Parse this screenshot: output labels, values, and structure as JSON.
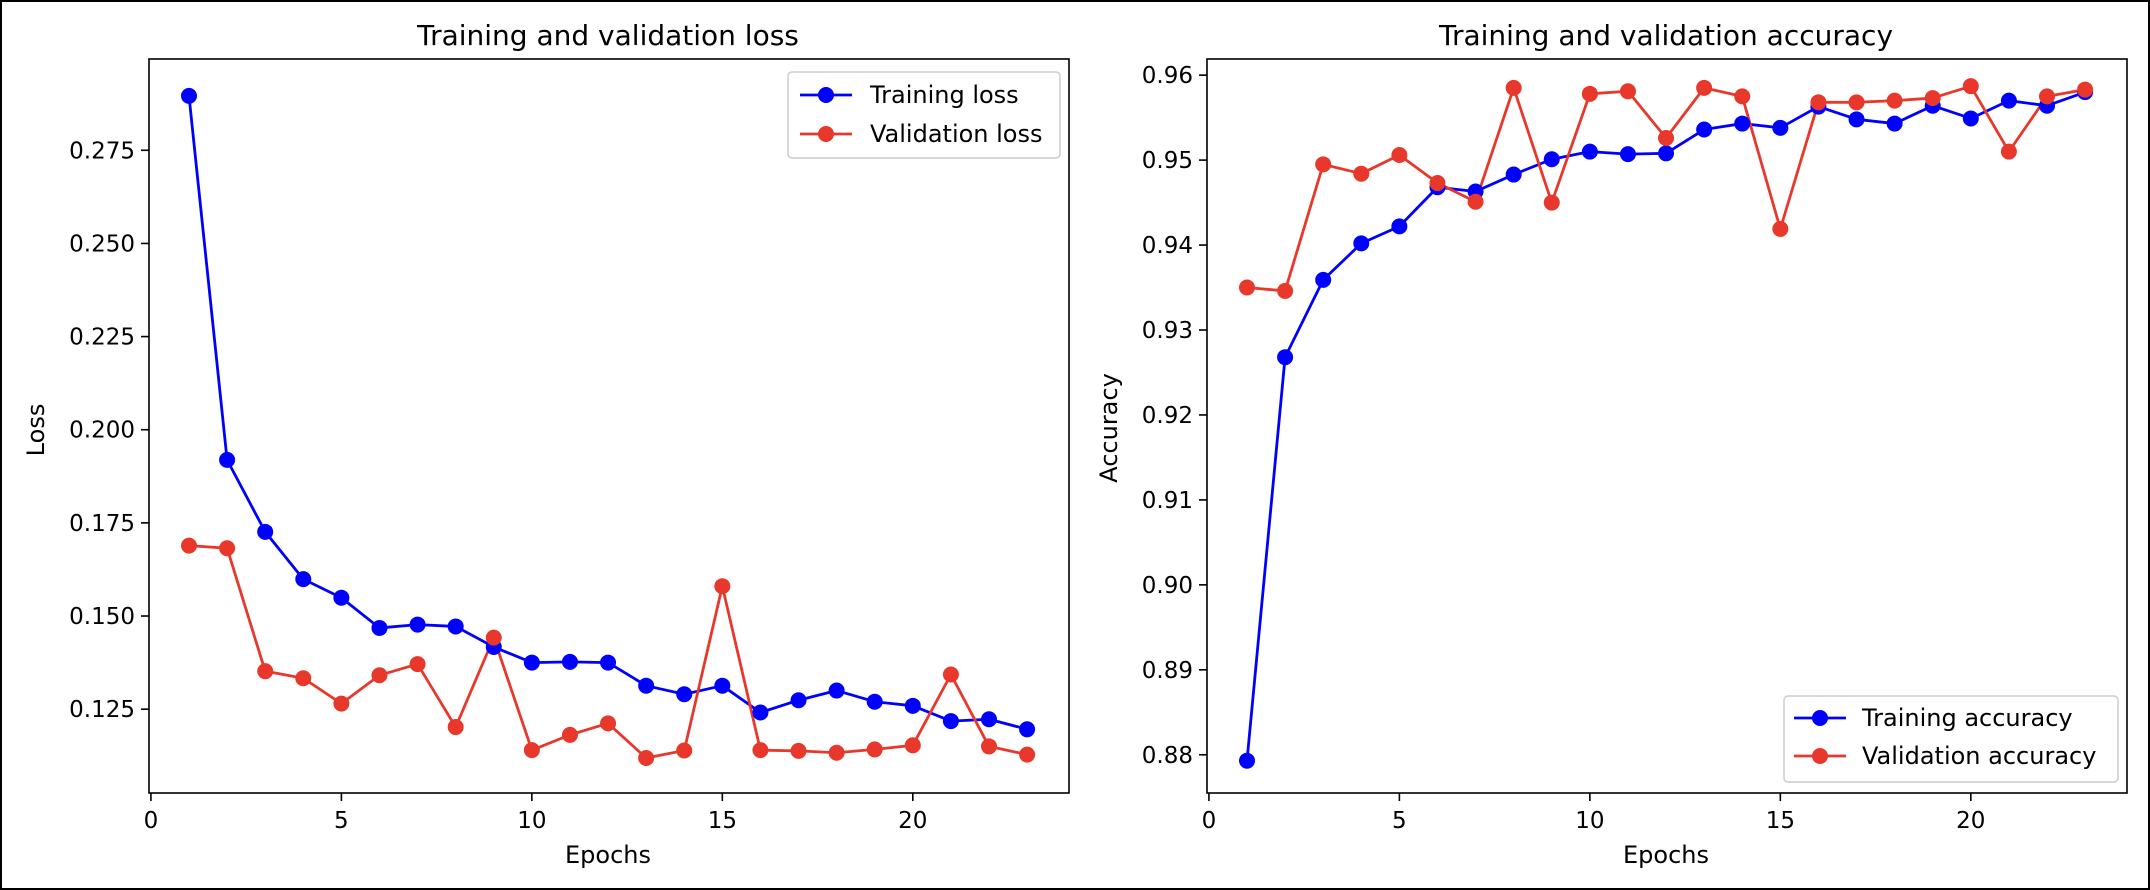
{
  "chart_data": [
    {
      "type": "line",
      "title": "Training and validation loss",
      "xlabel": "Epochs",
      "ylabel": "Loss",
      "xlim": [
        -0.05,
        24.1
      ],
      "ylim": [
        0.1025,
        0.2995
      ],
      "xticks": [
        0,
        5,
        10,
        15,
        20
      ],
      "yticks": [
        0.125,
        0.15,
        0.175,
        0.2,
        0.225,
        0.25,
        0.275
      ],
      "ytick_labels": [
        "0.125",
        "0.150",
        "0.175",
        "0.200",
        "0.225",
        "0.250",
        "0.275"
      ],
      "legend_position": "top-right",
      "x": [
        1,
        2,
        3,
        4,
        5,
        6,
        7,
        8,
        9,
        10,
        11,
        12,
        13,
        14,
        15,
        16,
        17,
        18,
        19,
        20,
        21,
        22,
        23
      ],
      "series": [
        {
          "name": "Training loss",
          "color": "#0000ff",
          "values": [
            0.2896,
            0.1919,
            0.1726,
            0.1599,
            0.1549,
            0.1468,
            0.1477,
            0.1472,
            0.1417,
            0.1375,
            0.1377,
            0.1375,
            0.1313,
            0.129,
            0.1313,
            0.1241,
            0.1274,
            0.13,
            0.127,
            0.1259,
            0.1218,
            0.1223,
            0.1196
          ]
        },
        {
          "name": "Validation loss",
          "color": "#e8382b",
          "values": [
            0.1689,
            0.1682,
            0.1352,
            0.1333,
            0.1265,
            0.1341,
            0.1371,
            0.1202,
            0.1442,
            0.114,
            0.1181,
            0.1212,
            0.1119,
            0.1139,
            0.158,
            0.114,
            0.1138,
            0.1133,
            0.1142,
            0.1153,
            0.1343,
            0.115,
            0.1128
          ]
        }
      ]
    },
    {
      "type": "line",
      "title": "Training and validation accuracy",
      "xlabel": "Epochs",
      "ylabel": "Accuracy",
      "xlim": [
        -0.05,
        24.1
      ],
      "ylim": [
        0.8755,
        0.9619
      ],
      "xticks": [
        0,
        5,
        10,
        15,
        20
      ],
      "yticks": [
        0.88,
        0.89,
        0.9,
        0.91,
        0.92,
        0.93,
        0.94,
        0.95,
        0.96
      ],
      "ytick_labels": [
        "0.88",
        "0.89",
        "0.90",
        "0.91",
        "0.92",
        "0.93",
        "0.94",
        "0.95",
        "0.96"
      ],
      "legend_position": "bottom-right",
      "x": [
        1,
        2,
        3,
        4,
        5,
        6,
        7,
        8,
        9,
        10,
        11,
        12,
        13,
        14,
        15,
        16,
        17,
        18,
        19,
        20,
        21,
        22,
        23
      ],
      "series": [
        {
          "name": "Training accuracy",
          "color": "#0000ff",
          "values": [
            0.8793,
            0.9268,
            0.9359,
            0.9402,
            0.9422,
            0.9468,
            0.9463,
            0.9483,
            0.9501,
            0.951,
            0.9507,
            0.9508,
            0.9536,
            0.9543,
            0.9538,
            0.9563,
            0.9548,
            0.9543,
            0.9564,
            0.9549,
            0.957,
            0.9564,
            0.958
          ]
        },
        {
          "name": "Validation accuracy",
          "color": "#e8382b",
          "values": [
            0.935,
            0.9346,
            0.9495,
            0.9484,
            0.9506,
            0.9473,
            0.9451,
            0.9585,
            0.945,
            0.9578,
            0.9581,
            0.9526,
            0.9585,
            0.9575,
            0.9419,
            0.9568,
            0.9568,
            0.957,
            0.9573,
            0.9587,
            0.951,
            0.9575,
            0.9583
          ]
        }
      ]
    }
  ]
}
